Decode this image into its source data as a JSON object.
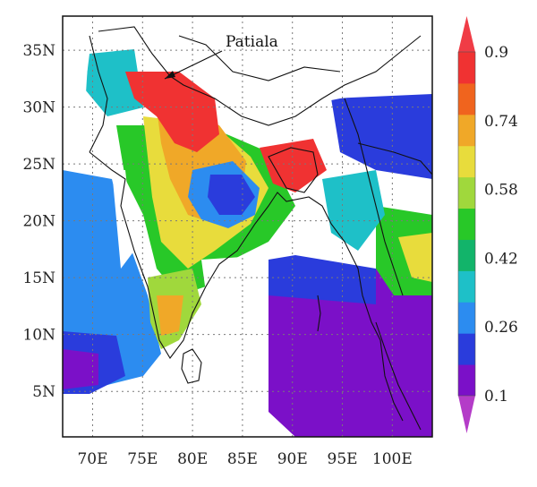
{
  "map": {
    "annotation": "Patiala",
    "lon_ticks": [
      "70E",
      "75E",
      "80E",
      "85E",
      "90E",
      "95E",
      "100E"
    ],
    "lat_ticks": [
      "5N",
      "10N",
      "15N",
      "20N",
      "25N",
      "30N",
      "35N"
    ],
    "lon_values": [
      70,
      75,
      80,
      85,
      90,
      95,
      100
    ],
    "lat_values": [
      5,
      10,
      15,
      20,
      25,
      30,
      35
    ],
    "lon_range": [
      67,
      104
    ],
    "lat_range": [
      1,
      38
    ],
    "gridlines": "dotted"
  },
  "colorbar": {
    "labels": [
      "0.9",
      "0.74",
      "0.58",
      "0.42",
      "0.26",
      "0.1"
    ],
    "levels": [
      0.1,
      0.18,
      0.26,
      0.34,
      0.42,
      0.5,
      0.58,
      0.66,
      0.74,
      0.82,
      0.9
    ],
    "colors": [
      "#7b10c8",
      "#2a3cdc",
      "#2c8cf0",
      "#1ec0c8",
      "#12b46a",
      "#28c828",
      "#a0d83c",
      "#e8dc3c",
      "#f0a828",
      "#f0641e",
      "#f03232"
    ],
    "over_color": "#f03c46",
    "under_color": "#b43cc8"
  }
}
